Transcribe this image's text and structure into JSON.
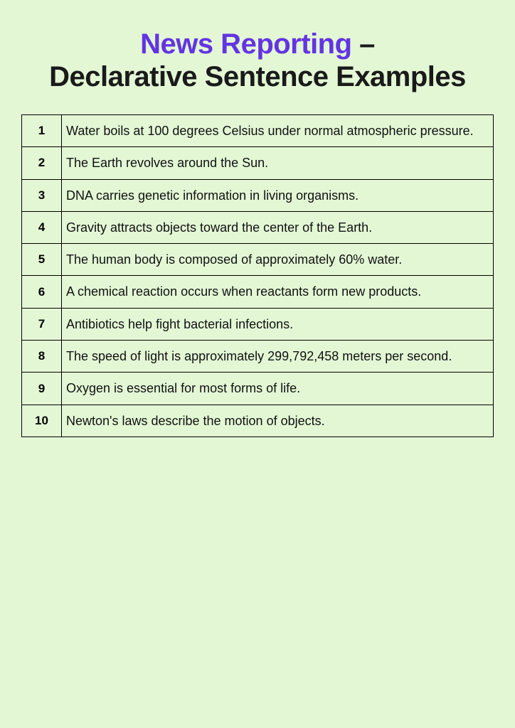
{
  "background_color": "#e3f7d5",
  "title": {
    "highlight": "News Reporting",
    "highlight_color": "#6334e3",
    "dash": " – ",
    "sub": "Declarative Sentence Examples",
    "text_color": "#1a1a1a",
    "font_size": 40,
    "font_weight": 900
  },
  "table": {
    "border_color": "#000000",
    "number_column_width": 56,
    "number_font_size": 17,
    "text_font_size": 18,
    "rows": [
      {
        "num": "1",
        "text": "Water boils at 100 degrees Celsius under normal atmospheric pressure."
      },
      {
        "num": "2",
        "text": "The Earth revolves around the Sun."
      },
      {
        "num": "3",
        "text": "DNA carries genetic information in living organisms."
      },
      {
        "num": "4",
        "text": "Gravity attracts objects toward the center of the Earth."
      },
      {
        "num": "5",
        "text": "The human body is composed of approximately 60% water."
      },
      {
        "num": "6",
        "text": "A chemical reaction occurs when reactants form new products."
      },
      {
        "num": "7",
        "text": "Antibiotics help fight bacterial infections."
      },
      {
        "num": "8",
        "text": "The speed of light is approximately 299,792,458 meters per second."
      },
      {
        "num": "9",
        "text": "Oxygen is essential for most forms of life."
      },
      {
        "num": "10",
        "text": "Newton's laws describe the motion of objects."
      }
    ]
  }
}
